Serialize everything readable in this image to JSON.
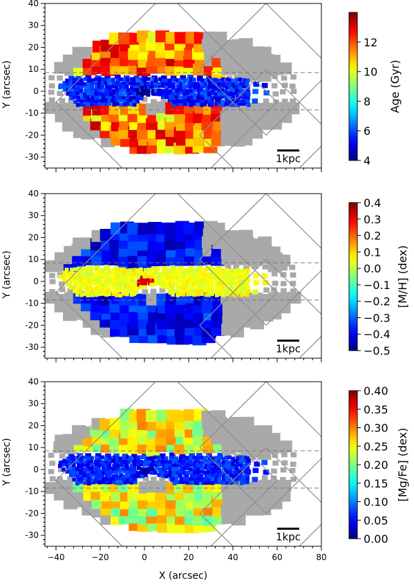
{
  "colors": {
    "masked": "#a9a9a9",
    "dashed": "#777777",
    "outline": "#8c8c8c",
    "scalebar": "#000000"
  },
  "chart_data": [
    {
      "type": "heatmap",
      "panel": "age",
      "xlabel": "",
      "ylabel": "Y (arcsec)",
      "xlim": [
        -45,
        80
      ],
      "ylim": [
        -35,
        40
      ],
      "xticks": [
        -40,
        -20,
        0,
        20,
        40,
        60,
        80
      ],
      "yticks": [
        -30,
        -20,
        -10,
        0,
        10,
        20,
        30,
        40
      ],
      "show_xtick_labels": false,
      "dashed_y": [
        8.5,
        -8.5
      ],
      "scalebar_label": "1kpc",
      "scalebar_x": [
        60,
        70
      ],
      "scalebar_y": -27,
      "colorbar": {
        "label": "Age (Gyr)",
        "colormap": "jet",
        "vmin": 4,
        "vmax": 14,
        "ticks": [
          "4",
          "6",
          "8",
          "10",
          "12"
        ]
      },
      "pattern": {
        "disk_value": 5.5,
        "center_value": 4.2,
        "halo_value": 11.5,
        "halo_spread": 1.8
      }
    },
    {
      "type": "heatmap",
      "panel": "metallicity",
      "xlabel": "",
      "ylabel": "Y (arcsec)",
      "xlim": [
        -45,
        80
      ],
      "ylim": [
        -35,
        40
      ],
      "xticks": [
        -40,
        -20,
        0,
        20,
        40,
        60,
        80
      ],
      "yticks": [
        -30,
        -20,
        -10,
        0,
        10,
        20,
        30,
        40
      ],
      "show_xtick_labels": false,
      "dashed_y": [
        8.5,
        -8.5
      ],
      "scalebar_label": "1kpc",
      "scalebar_x": [
        60,
        70
      ],
      "scalebar_y": -27,
      "colorbar": {
        "label": "[M/H] (dex)",
        "colormap": "jet",
        "vmin": -0.5,
        "vmax": 0.4,
        "ticks": [
          "−0.5",
          "−0.4",
          "−0.3",
          "−0.2",
          "−0.1",
          "0.0",
          "0.1",
          "0.2",
          "0.3",
          "0.4"
        ]
      },
      "pattern": {
        "disk_value": 0.05,
        "center_value": 0.32,
        "halo_value": -0.38,
        "halo_spread": 0.08
      }
    },
    {
      "type": "heatmap",
      "panel": "alpha",
      "xlabel": "X (arcsec)",
      "ylabel": "Y (arcsec)",
      "xlim": [
        -45,
        80
      ],
      "ylim": [
        -35,
        40
      ],
      "xticks": [
        -40,
        -20,
        0,
        20,
        40,
        60,
        80
      ],
      "yticks": [
        -30,
        -20,
        -10,
        0,
        10,
        20,
        30,
        40
      ],
      "show_xtick_labels": true,
      "dashed_y": [
        8.5,
        -8.5
      ],
      "scalebar_label": "1kpc",
      "scalebar_x": [
        60,
        70
      ],
      "scalebar_y": -27,
      "colorbar": {
        "label": "[Mg/Fe] (dex)",
        "colormap": "jet",
        "vmin": 0.0,
        "vmax": 0.4,
        "ticks": [
          "0.00",
          "0.05",
          "0.10",
          "0.15",
          "0.20",
          "0.25",
          "0.30",
          "0.35",
          "0.40"
        ]
      },
      "pattern": {
        "disk_value": 0.06,
        "center_value": 0.02,
        "halo_value": 0.24,
        "halo_spread": 0.06
      }
    }
  ]
}
